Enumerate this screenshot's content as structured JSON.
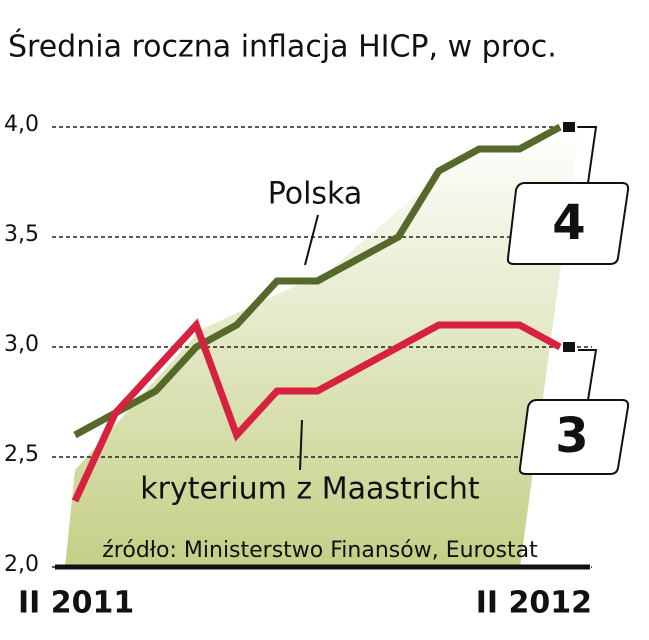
{
  "chart_data": {
    "type": "line",
    "title": "Średnia roczna inflacja HICP, w proc.",
    "categories": [
      "II 2011",
      null,
      null,
      null,
      null,
      null,
      null,
      null,
      null,
      null,
      null,
      null,
      "II 2012"
    ],
    "series": [
      {
        "name": "Polska",
        "color": "#56692a",
        "values": [
          2.6,
          2.7,
          2.8,
          3.0,
          3.1,
          3.3,
          3.3,
          3.4,
          3.5,
          3.8,
          3.9,
          3.9,
          4.0
        ],
        "end_label": "4"
      },
      {
        "name": "kryterium z Maastricht",
        "color": "#d6213f",
        "values": [
          2.3,
          2.7,
          2.9,
          3.1,
          2.6,
          2.8,
          2.8,
          2.9,
          3.0,
          3.1,
          3.1,
          3.1,
          3.0
        ],
        "end_label": "3"
      }
    ],
    "ylim": [
      2.0,
      4.0
    ],
    "yticks": [
      {
        "value": 2.0,
        "label": "2,0"
      },
      {
        "value": 2.5,
        "label": "2,5"
      },
      {
        "value": 3.0,
        "label": "3,0"
      },
      {
        "value": 3.5,
        "label": "3,5"
      },
      {
        "value": 4.0,
        "label": "4,0"
      }
    ],
    "grid": true,
    "source": "źródło: Ministerstwo Finansów, Eurostat"
  }
}
